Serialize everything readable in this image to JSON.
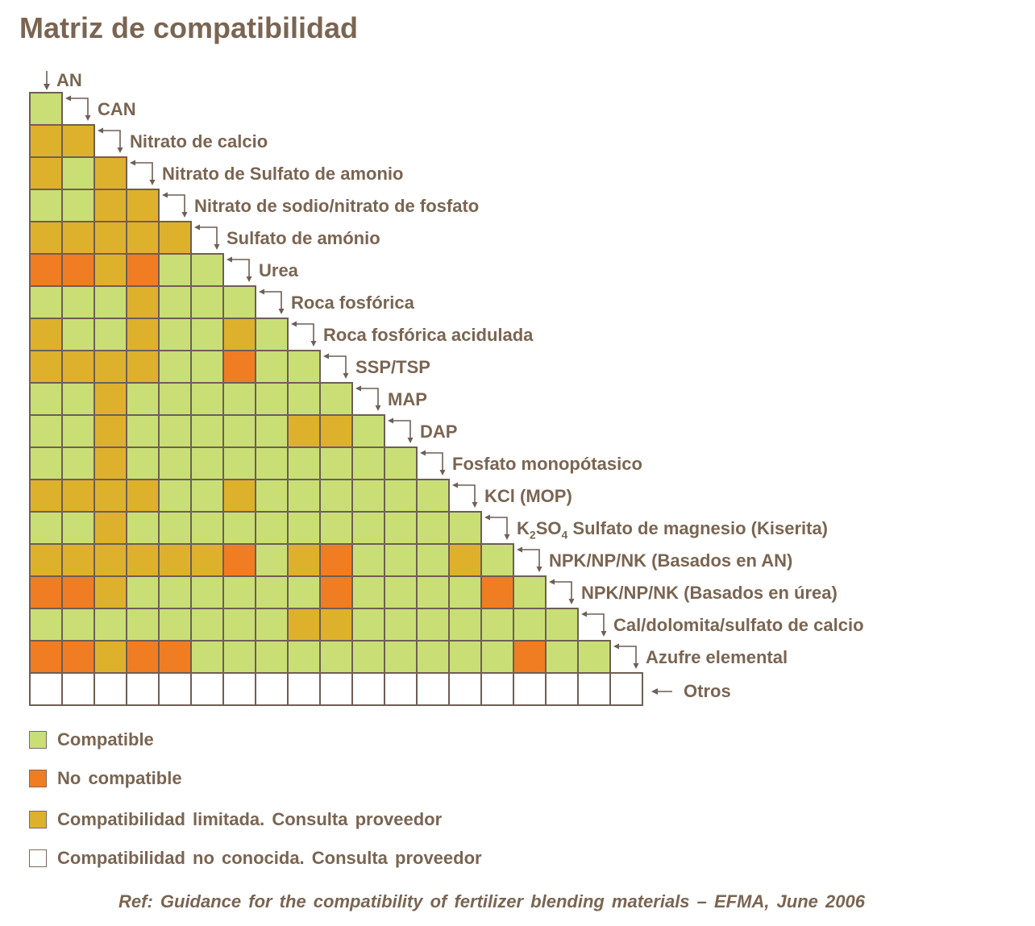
{
  "title": "Matriz de compatibilidad",
  "colors": {
    "C": "#c9df76",
    "N": "#f07d22",
    "L": "#deb12d",
    "U": "#ffffff",
    "border": "#6f5e55",
    "text": "#7a6552"
  },
  "products": [
    "AN",
    "CAN",
    "Nitrato de calcio",
    "Nitrato de Sulfato de amonio",
    "Nitrato de sodio/nitrato de fosfato",
    "Sulfato de amónio",
    "Urea",
    "Roca fosfórica",
    "Roca fosfórica acidulada",
    "SSP/TSP",
    "MAP",
    "DAP",
    "Fosfato monopótasico",
    "KCl (MOP)",
    "K2SO4 Sulfato de magnesio (Kiserita)",
    "NPK/NP/NK (Basados en AN)",
    "NPK/NP/NK (Basados en úrea)",
    "Cal/dolomita/sulfato de calcio",
    "Azufre elemental",
    "Otros"
  ],
  "matrix": [
    [
      "C"
    ],
    [
      "L",
      "L"
    ],
    [
      "L",
      "C",
      "L"
    ],
    [
      "C",
      "C",
      "L",
      "L"
    ],
    [
      "L",
      "L",
      "L",
      "L",
      "L"
    ],
    [
      "N",
      "N",
      "L",
      "N",
      "C",
      "C"
    ],
    [
      "C",
      "C",
      "C",
      "L",
      "C",
      "C",
      "C"
    ],
    [
      "L",
      "C",
      "C",
      "L",
      "C",
      "C",
      "L",
      "C"
    ],
    [
      "L",
      "L",
      "L",
      "L",
      "C",
      "C",
      "N",
      "C",
      "C"
    ],
    [
      "C",
      "C",
      "L",
      "C",
      "C",
      "C",
      "C",
      "C",
      "C",
      "C"
    ],
    [
      "C",
      "C",
      "L",
      "C",
      "C",
      "C",
      "C",
      "C",
      "L",
      "L",
      "C"
    ],
    [
      "C",
      "C",
      "L",
      "C",
      "C",
      "C",
      "C",
      "C",
      "C",
      "C",
      "C",
      "C"
    ],
    [
      "L",
      "L",
      "L",
      "L",
      "C",
      "C",
      "L",
      "C",
      "C",
      "C",
      "C",
      "C",
      "C"
    ],
    [
      "C",
      "C",
      "L",
      "C",
      "C",
      "C",
      "C",
      "C",
      "C",
      "C",
      "C",
      "C",
      "C",
      "C"
    ],
    [
      "L",
      "L",
      "L",
      "L",
      "L",
      "L",
      "N",
      "C",
      "L",
      "N",
      "C",
      "C",
      "C",
      "L",
      "C"
    ],
    [
      "N",
      "N",
      "L",
      "C",
      "C",
      "C",
      "C",
      "C",
      "C",
      "N",
      "C",
      "C",
      "C",
      "C",
      "N",
      "C"
    ],
    [
      "C",
      "C",
      "C",
      "C",
      "C",
      "C",
      "C",
      "C",
      "L",
      "L",
      "C",
      "C",
      "C",
      "C",
      "C",
      "C",
      "C"
    ],
    [
      "N",
      "N",
      "L",
      "N",
      "N",
      "C",
      "C",
      "C",
      "C",
      "C",
      "C",
      "C",
      "C",
      "C",
      "C",
      "N",
      "C",
      "C"
    ],
    [
      "U",
      "U",
      "U",
      "U",
      "U",
      "U",
      "U",
      "U",
      "U",
      "U",
      "U",
      "U",
      "U",
      "U",
      "U",
      "U",
      "U",
      "U",
      "U"
    ]
  ],
  "legend": [
    {
      "code": "C",
      "label": "Compatible"
    },
    {
      "code": "N",
      "label": "No compatible"
    },
    {
      "code": "L",
      "label": "Compatibilidad  limitada. Consulta proveedor"
    },
    {
      "code": "U",
      "label": "Compatibilidad  no conocida. Consulta proveedor"
    }
  ],
  "reference": "Ref: Guidance  for the compatibility  of fertilizer blending  materials – EFMA, June 2006"
}
